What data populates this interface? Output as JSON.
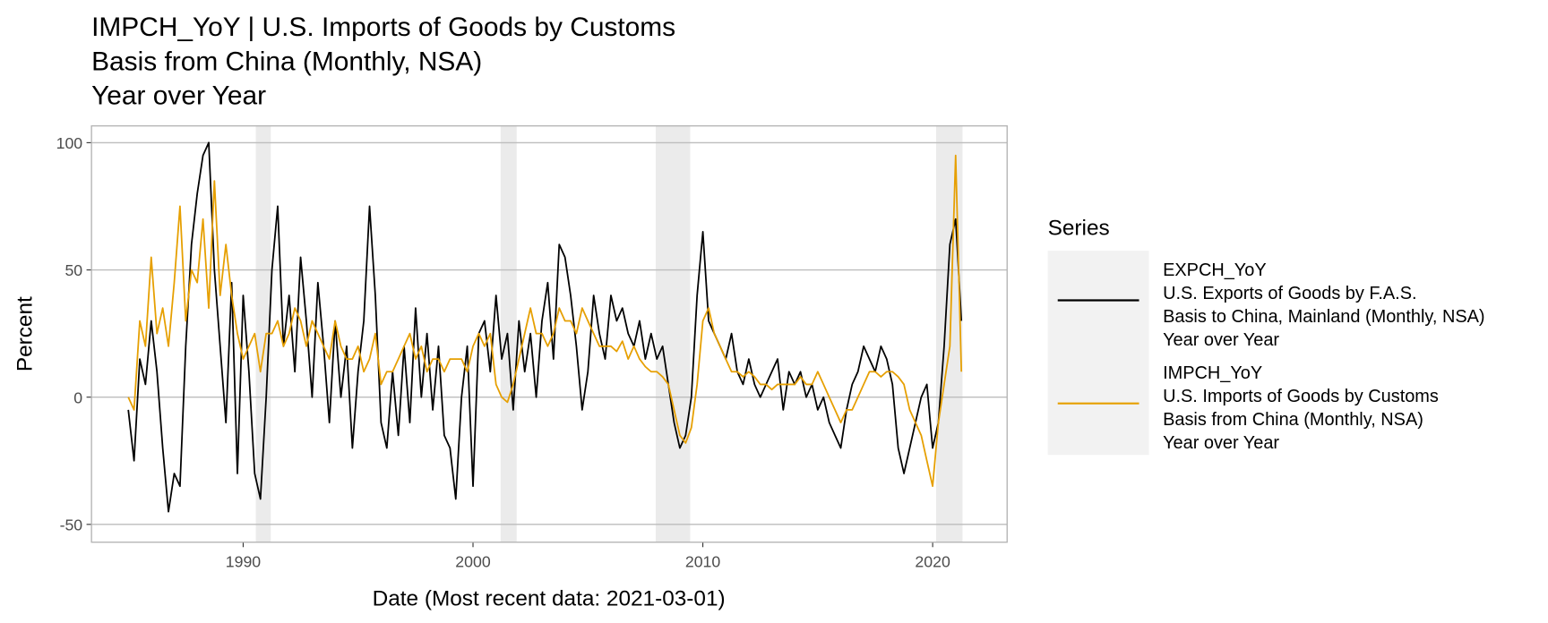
{
  "chart_data": {
    "type": "line",
    "title": [
      "IMPCH_YoY | U.S. Imports of Goods by Customs",
      "Basis from China (Monthly, NSA)",
      "Year over Year"
    ],
    "x_label": "Date (Most recent data: 2021-03-01)",
    "y_label": "Percent",
    "legend_title": "Series",
    "legend_position": "right",
    "grid": true,
    "xlim": [
      1983.4,
      2023.24
    ],
    "ylim": [
      -57,
      106.6
    ],
    "xticks": [
      1990,
      2000,
      2010,
      2020
    ],
    "yticks": [
      -50,
      0,
      50,
      100
    ],
    "shaded_regions": [
      [
        1990.55,
        1991.2
      ],
      [
        2001.2,
        2001.9
      ],
      [
        2007.95,
        2009.45
      ],
      [
        2020.15,
        2021.3
      ]
    ],
    "shade_color": "#ebebeb",
    "x": [
      1985,
      1985.25,
      1985.5,
      1985.75,
      1986,
      1986.25,
      1986.5,
      1986.75,
      1987,
      1987.25,
      1987.5,
      1987.75,
      1988,
      1988.25,
      1988.5,
      1988.75,
      1989,
      1989.25,
      1989.5,
      1989.75,
      1990,
      1990.25,
      1990.5,
      1990.75,
      1991,
      1991.25,
      1991.5,
      1991.75,
      1992,
      1992.25,
      1992.5,
      1992.75,
      1993,
      1993.25,
      1993.5,
      1993.75,
      1994,
      1994.25,
      1994.5,
      1994.75,
      1995,
      1995.25,
      1995.5,
      1995.75,
      1996,
      1996.25,
      1996.5,
      1996.75,
      1997,
      1997.25,
      1997.5,
      1997.75,
      1998,
      1998.25,
      1998.5,
      1998.75,
      1999,
      1999.25,
      1999.5,
      1999.75,
      2000,
      2000.25,
      2000.5,
      2000.75,
      2001,
      2001.25,
      2001.5,
      2001.75,
      2002,
      2002.25,
      2002.5,
      2002.75,
      2003,
      2003.25,
      2003.5,
      2003.75,
      2004,
      2004.25,
      2004.5,
      2004.75,
      2005,
      2005.25,
      2005.5,
      2005.75,
      2006,
      2006.25,
      2006.5,
      2006.75,
      2007,
      2007.25,
      2007.5,
      2007.75,
      2008,
      2008.25,
      2008.5,
      2008.75,
      2009,
      2009.25,
      2009.5,
      2009.75,
      2010,
      2010.25,
      2010.5,
      2010.75,
      2011,
      2011.25,
      2011.5,
      2011.75,
      2012,
      2012.25,
      2012.5,
      2012.75,
      2013,
      2013.25,
      2013.5,
      2013.75,
      2014,
      2014.25,
      2014.5,
      2014.75,
      2015,
      2015.25,
      2015.5,
      2015.75,
      2016,
      2016.25,
      2016.5,
      2016.75,
      2017,
      2017.25,
      2017.5,
      2017.75,
      2018,
      2018.25,
      2018.5,
      2018.75,
      2019,
      2019.25,
      2019.5,
      2019.75,
      2020,
      2020.25,
      2020.5,
      2020.75,
      2021,
      2021.25
    ],
    "series": [
      {
        "name": [
          "EXPCH_YoY",
          "U.S. Exports of Goods by F.A.S.",
          "Basis to China, Mainland (Monthly, NSA)",
          "Year over Year"
        ],
        "color": "#000000",
        "values": [
          -5,
          -25,
          15,
          5,
          30,
          10,
          -20,
          -45,
          -30,
          -35,
          20,
          60,
          80,
          95,
          100,
          50,
          20,
          -10,
          45,
          -30,
          40,
          10,
          -30,
          -40,
          0,
          50,
          75,
          20,
          40,
          10,
          55,
          30,
          0,
          45,
          20,
          -10,
          30,
          0,
          20,
          -20,
          10,
          30,
          75,
          40,
          -10,
          -20,
          10,
          -15,
          20,
          -10,
          35,
          0,
          25,
          -5,
          20,
          -15,
          -20,
          -40,
          0,
          20,
          -35,
          25,
          30,
          10,
          40,
          15,
          25,
          -5,
          30,
          10,
          25,
          0,
          30,
          45,
          15,
          60,
          55,
          40,
          20,
          -5,
          10,
          40,
          25,
          15,
          40,
          30,
          35,
          25,
          20,
          30,
          15,
          25,
          15,
          20,
          5,
          -10,
          -20,
          -15,
          0,
          40,
          65,
          30,
          25,
          20,
          15,
          25,
          10,
          5,
          15,
          5,
          0,
          5,
          10,
          15,
          -5,
          10,
          5,
          10,
          0,
          5,
          -5,
          0,
          -10,
          -15,
          -20,
          -5,
          5,
          10,
          20,
          15,
          10,
          20,
          15,
          5,
          -20,
          -30,
          -20,
          -10,
          0,
          5,
          -20,
          -10,
          20,
          60,
          70,
          30
        ]
      },
      {
        "name": [
          "IMPCH_YoY",
          "U.S. Imports of Goods by Customs",
          "Basis from China (Monthly, NSA)",
          "Year over Year"
        ],
        "color": "#e69f00",
        "values": [
          0,
          -5,
          30,
          20,
          55,
          25,
          35,
          20,
          45,
          75,
          30,
          50,
          45,
          70,
          35,
          85,
          40,
          60,
          40,
          25,
          15,
          20,
          25,
          10,
          25,
          25,
          30,
          20,
          25,
          35,
          30,
          20,
          30,
          25,
          20,
          15,
          30,
          20,
          15,
          15,
          20,
          10,
          15,
          25,
          5,
          10,
          10,
          15,
          20,
          25,
          15,
          20,
          10,
          15,
          15,
          10,
          15,
          15,
          15,
          10,
          20,
          25,
          20,
          25,
          5,
          0,
          -2,
          5,
          15,
          25,
          35,
          25,
          25,
          20,
          25,
          35,
          30,
          30,
          25,
          35,
          30,
          25,
          20,
          20,
          20,
          18,
          22,
          15,
          20,
          15,
          12,
          10,
          10,
          8,
          5,
          -5,
          -15,
          -18,
          -12,
          5,
          30,
          35,
          25,
          20,
          15,
          10,
          10,
          8,
          10,
          8,
          5,
          5,
          3,
          5,
          5,
          5,
          5,
          8,
          5,
          5,
          10,
          5,
          0,
          -5,
          -10,
          -5,
          -5,
          0,
          5,
          10,
          10,
          8,
          10,
          10,
          8,
          5,
          -5,
          -10,
          -15,
          -25,
          -35,
          -10,
          5,
          20,
          95,
          10
        ]
      }
    ]
  }
}
